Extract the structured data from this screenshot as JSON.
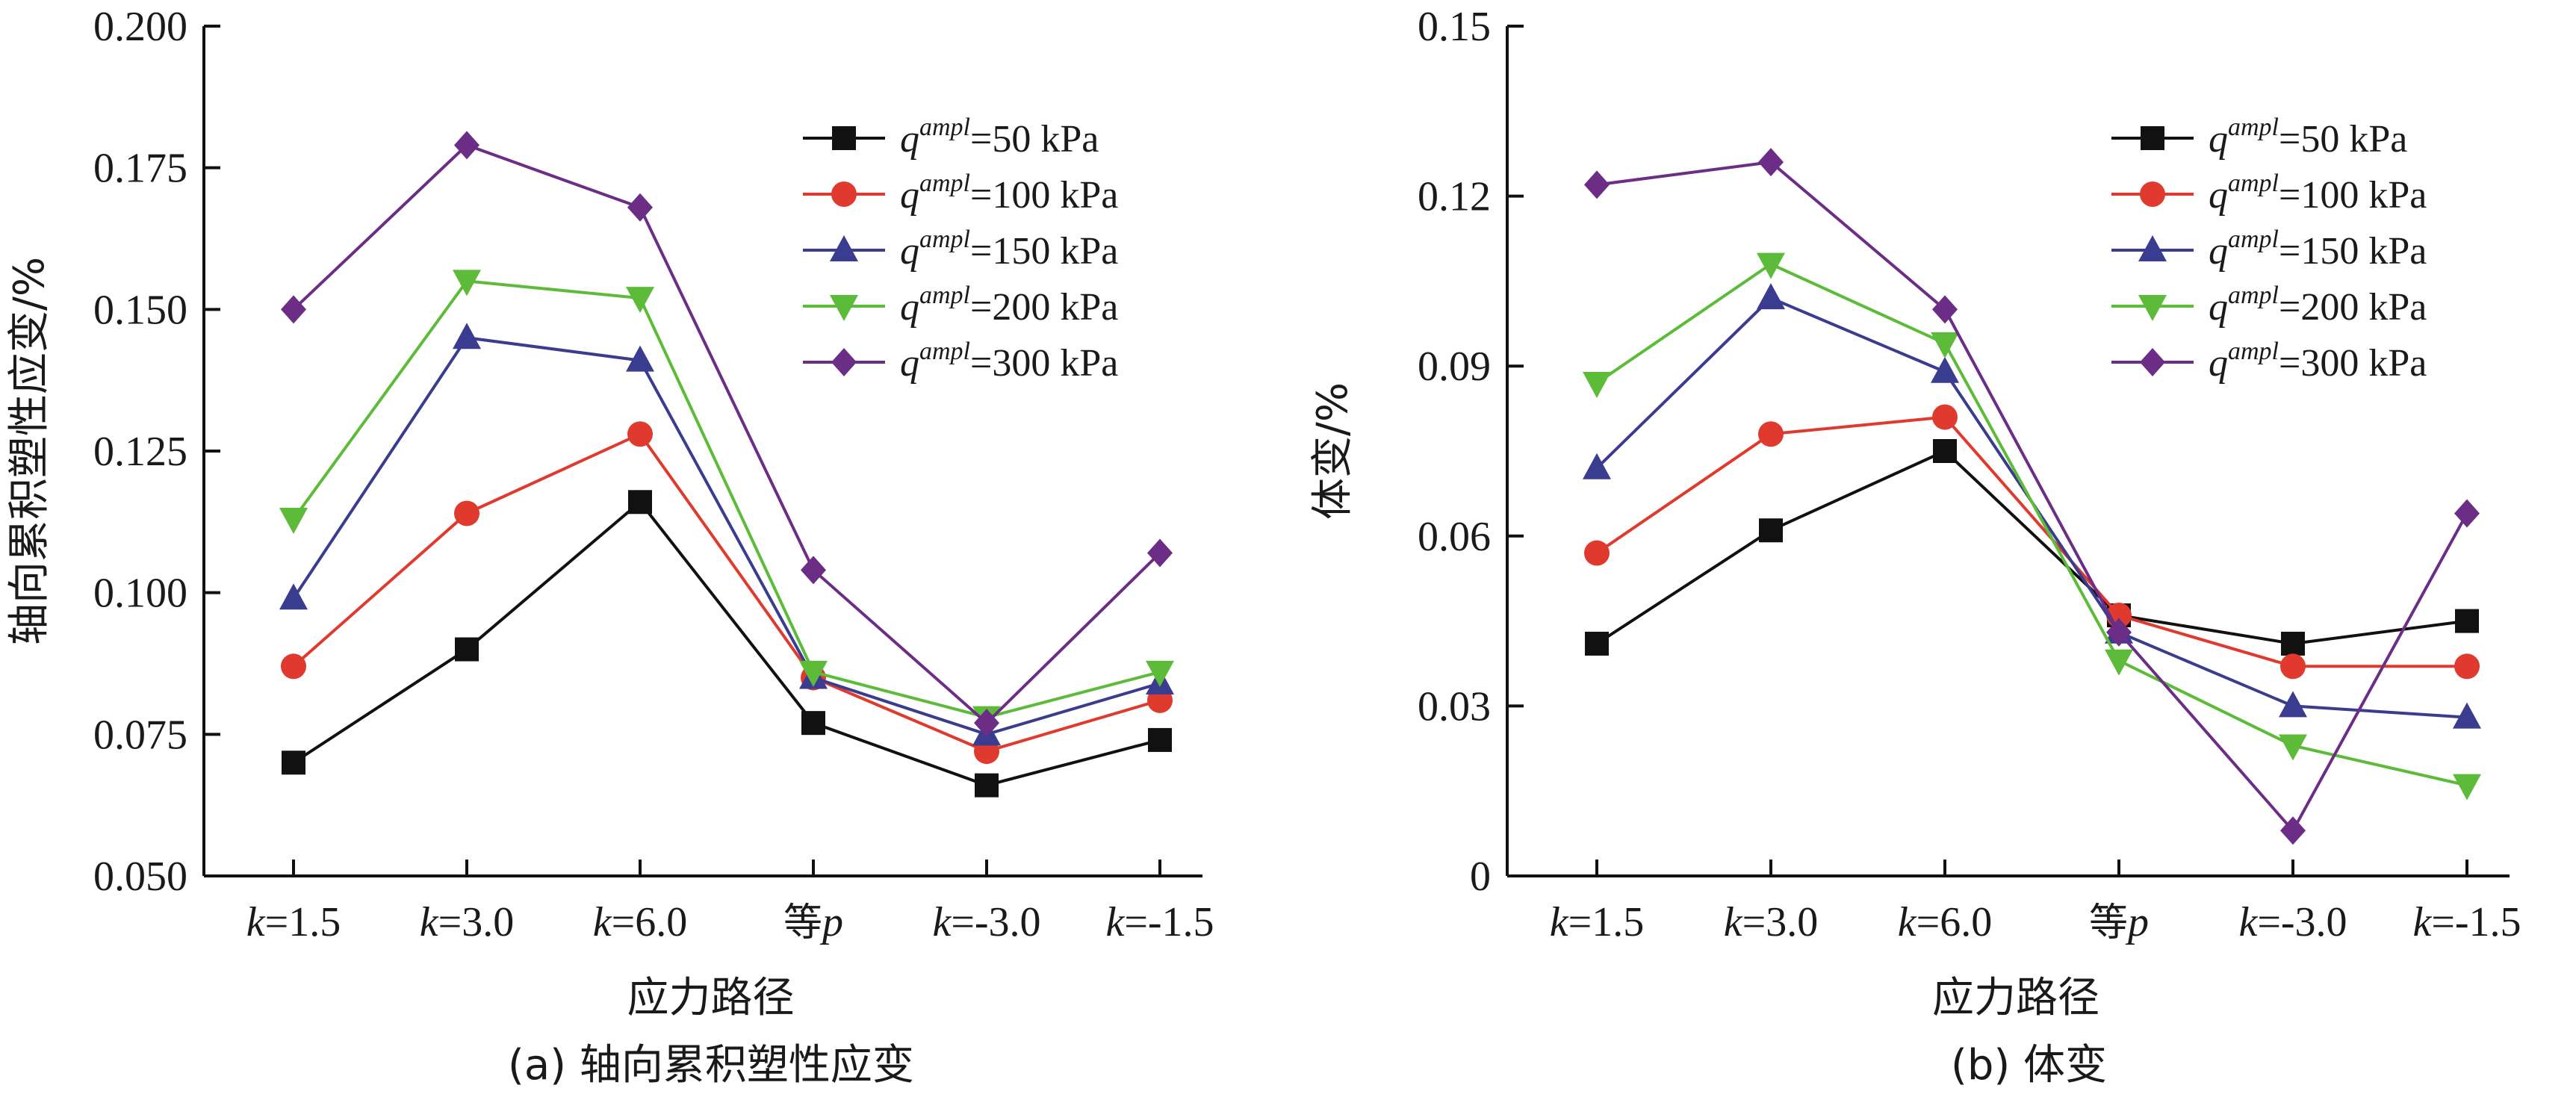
{
  "chart_data": [
    {
      "type": "line",
      "caption": "(a) 轴向累积塑性应变",
      "ylabel": "轴向累积塑性应变/%",
      "xlabel": "应力路径",
      "categories": [
        {
          "italic": "k",
          "rest": "=1.5"
        },
        {
          "italic": "k",
          "rest": "=3.0"
        },
        {
          "italic": "k",
          "rest": "=6.0"
        },
        {
          "normal": "等",
          "italic_suffix": "p"
        },
        {
          "italic": "k",
          "rest": "=-3.0"
        },
        {
          "italic": "k",
          "rest": "=-1.5"
        }
      ],
      "ylim": [
        0.05,
        0.2
      ],
      "yticks": [
        "0.050",
        "0.075",
        "0.100",
        "0.125",
        "0.150",
        "0.175",
        "0.200"
      ],
      "legend_position": "top-right",
      "series": [
        {
          "name": "q^ampl=50 kPa",
          "name_base": "q",
          "name_sup": "ampl",
          "name_rest": "=50 kPa",
          "color": "#111111",
          "marker": "square",
          "values": [
            0.07,
            0.09,
            0.116,
            0.077,
            0.066,
            0.074
          ]
        },
        {
          "name": "q^ampl=100 kPa",
          "name_base": "q",
          "name_sup": "ampl",
          "name_rest": "=100 kPa",
          "color": "#e03a2e",
          "marker": "circle",
          "values": [
            0.087,
            0.114,
            0.128,
            0.085,
            0.072,
            0.081
          ]
        },
        {
          "name": "q^ampl=150 kPa",
          "name_base": "q",
          "name_sup": "ampl",
          "name_rest": "=150 kPa",
          "color": "#3a3c8f",
          "marker": "triangle-up",
          "values": [
            0.099,
            0.145,
            0.141,
            0.085,
            0.075,
            0.084
          ]
        },
        {
          "name": "q^ampl=200 kPa",
          "name_base": "q",
          "name_sup": "ampl",
          "name_rest": "=200 kPa",
          "color": "#5dbb3a",
          "marker": "triangle-down",
          "values": [
            0.113,
            0.155,
            0.152,
            0.086,
            0.078,
            0.086
          ]
        },
        {
          "name": "q^ampl=300 kPa",
          "name_base": "q",
          "name_sup": "ampl",
          "name_rest": "=300 kPa",
          "color": "#6b2d86",
          "marker": "diamond",
          "values": [
            0.15,
            0.179,
            0.168,
            0.104,
            0.077,
            0.107
          ]
        }
      ]
    },
    {
      "type": "line",
      "caption": "(b) 体变",
      "ylabel": "体变/%",
      "xlabel": "应力路径",
      "categories": [
        {
          "italic": "k",
          "rest": "=1.5"
        },
        {
          "italic": "k",
          "rest": "=3.0"
        },
        {
          "italic": "k",
          "rest": "=6.0"
        },
        {
          "normal": "等",
          "italic_suffix": "p"
        },
        {
          "italic": "k",
          "rest": "=-3.0"
        },
        {
          "italic": "k",
          "rest": "=-1.5"
        }
      ],
      "ylim": [
        0,
        0.15
      ],
      "yticks": [
        "0",
        "0.03",
        "0.06",
        "0.09",
        "0.12",
        "0.15"
      ],
      "legend_position": "top-right",
      "series": [
        {
          "name": "q^ampl=50 kPa",
          "name_base": "q",
          "name_sup": "ampl",
          "name_rest": "=50 kPa",
          "color": "#111111",
          "marker": "square",
          "values": [
            0.041,
            0.061,
            0.075,
            0.046,
            0.041,
            0.045
          ]
        },
        {
          "name": "q^ampl=100 kPa",
          "name_base": "q",
          "name_sup": "ampl",
          "name_rest": "=100 kPa",
          "color": "#e03a2e",
          "marker": "circle",
          "values": [
            0.057,
            0.078,
            0.081,
            0.046,
            0.037,
            0.037
          ]
        },
        {
          "name": "q^ampl=150 kPa",
          "name_base": "q",
          "name_sup": "ampl",
          "name_rest": "=150 kPa",
          "color": "#3a3c8f",
          "marker": "triangle-up",
          "values": [
            0.072,
            0.102,
            0.089,
            0.043,
            0.03,
            0.028
          ]
        },
        {
          "name": "q^ampl=200 kPa",
          "name_base": "q",
          "name_sup": "ampl",
          "name_rest": "=200 kPa",
          "color": "#5dbb3a",
          "marker": "triangle-down",
          "values": [
            0.087,
            0.108,
            0.094,
            0.038,
            0.023,
            0.016
          ]
        },
        {
          "name": "q^ampl=300 kPa",
          "name_base": "q",
          "name_sup": "ampl",
          "name_rest": "=300 kPa",
          "color": "#6b2d86",
          "marker": "diamond",
          "values": [
            0.122,
            0.126,
            0.1,
            0.043,
            0.008,
            0.064
          ]
        }
      ]
    }
  ]
}
